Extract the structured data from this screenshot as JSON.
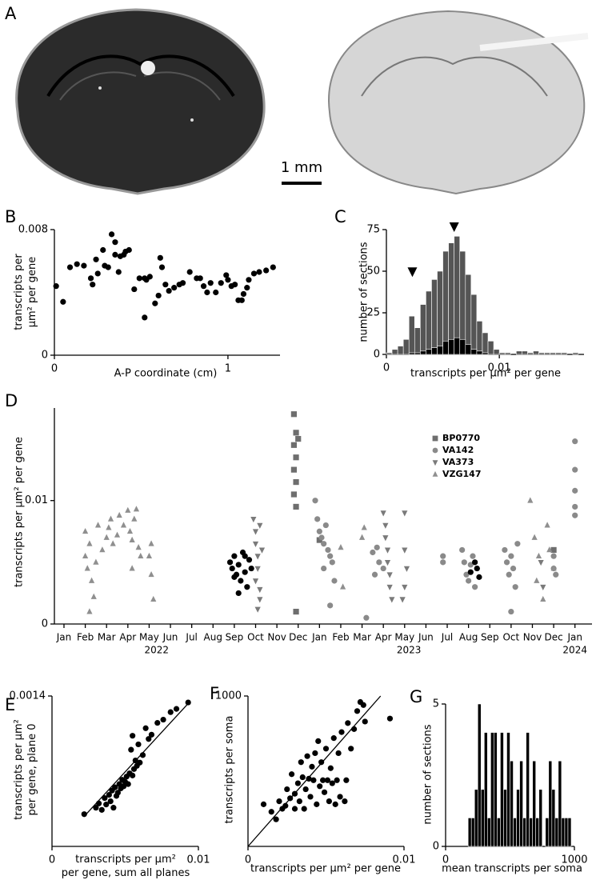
{
  "panel_a": {
    "label": "A",
    "scale_bar_label": "1 mm"
  },
  "chart_data": [
    {
      "type": "scatter",
      "label": "B",
      "ylabel": [
        "transcripts per",
        "μm² per gene"
      ],
      "xlabel": "A-P coordinate (cm)",
      "xlim": [
        0,
        1.3
      ],
      "ylim": [
        0,
        0.008
      ],
      "xticks": [
        0,
        1
      ],
      "yticks": [
        0,
        0.008
      ],
      "color": "#000000",
      "x": [
        0.01,
        0.05,
        0.09,
        0.13,
        0.17,
        0.21,
        0.22,
        0.24,
        0.25,
        0.28,
        0.29,
        0.31,
        0.33,
        0.35,
        0.35,
        0.37,
        0.38,
        0.4,
        0.41,
        0.43,
        0.46,
        0.49,
        0.52,
        0.52,
        0.53,
        0.55,
        0.58,
        0.6,
        0.61,
        0.62,
        0.64,
        0.66,
        0.69,
        0.72,
        0.74,
        0.78,
        0.82,
        0.84,
        0.86,
        0.88,
        0.9,
        0.93,
        0.96,
        0.99,
        1.0,
        1.02,
        1.04,
        1.06,
        1.08,
        1.09,
        1.11,
        1.12,
        1.15,
        1.18,
        1.22,
        1.26
      ],
      "values": [
        0.0044,
        0.0034,
        0.0056,
        0.0058,
        0.0057,
        0.0049,
        0.0045,
        0.0061,
        0.0052,
        0.0067,
        0.0057,
        0.0056,
        0.0077,
        0.0072,
        0.0064,
        0.0053,
        0.0063,
        0.0064,
        0.0066,
        0.0067,
        0.0042,
        0.0049,
        0.0049,
        0.0024,
        0.0048,
        0.005,
        0.0033,
        0.0038,
        0.0062,
        0.0056,
        0.0045,
        0.0041,
        0.0043,
        0.0045,
        0.0046,
        0.0053,
        0.0049,
        0.0049,
        0.0044,
        0.004,
        0.0046,
        0.004,
        0.0046,
        0.0051,
        0.0048,
        0.0044,
        0.0045,
        0.0035,
        0.0035,
        0.0039,
        0.0043,
        0.0048,
        0.0052,
        0.0053,
        0.0054,
        0.0056
      ]
    },
    {
      "type": "histogram",
      "label": "C",
      "ylabel": "number of sections",
      "xlabel": "transcripts per μm² per gene",
      "xlim": [
        0,
        0.0175
      ],
      "ylim": [
        0,
        75
      ],
      "xticks": [
        0,
        0.01
      ],
      "yticks": [
        0,
        25,
        50,
        75
      ],
      "bins": [
        0,
        0.0005,
        0.001,
        0.0015,
        0.002,
        0.0025,
        0.003,
        0.0035,
        0.004,
        0.0045,
        0.005,
        0.0055,
        0.006,
        0.0065,
        0.007,
        0.0075,
        0.008,
        0.0085,
        0.009,
        0.0095,
        0.01,
        0.0105,
        0.011,
        0.0115,
        0.012,
        0.0125,
        0.013,
        0.0135,
        0.014,
        0.0145,
        0.015,
        0.0155,
        0.016,
        0.0165,
        0.017,
        0.0175
      ],
      "series": [
        {
          "color": "#555555",
          "values": [
            1,
            3,
            5,
            9,
            23,
            16,
            30,
            38,
            45,
            50,
            62,
            67,
            71,
            62,
            48,
            36,
            20,
            13,
            8,
            3,
            1,
            1,
            0,
            2,
            2,
            1,
            2,
            1,
            1,
            1,
            1,
            1,
            0,
            1,
            0
          ]
        },
        {
          "color": "#000000",
          "values": [
            0,
            0,
            0,
            0,
            1,
            1,
            2,
            3,
            4,
            5,
            8,
            9,
            10,
            9,
            6,
            3,
            2,
            1,
            0,
            0,
            0,
            0,
            0,
            0,
            0,
            0,
            0,
            0,
            0,
            0,
            0,
            0,
            0,
            0,
            0
          ]
        }
      ],
      "markers": [
        {
          "x": 0.0023,
          "y": 50
        },
        {
          "x": 0.006,
          "y": 77
        }
      ]
    },
    {
      "type": "scatter",
      "label": "D",
      "ylabel": "transcripts per μm² per gene",
      "xlim": [
        -0.45,
        24.8
      ],
      "ylim": [
        0,
        0.0175
      ],
      "yticks": [
        0,
        0.01
      ],
      "legend": "upper right",
      "xticks": [
        {
          "value": 0,
          "label": "Jan"
        },
        {
          "value": 1,
          "label": "Feb"
        },
        {
          "value": 2,
          "label": "Mar"
        },
        {
          "value": 3,
          "label": "Apr"
        },
        {
          "value": 4,
          "label": "May"
        },
        {
          "value": 5,
          "label": "Jun"
        },
        {
          "value": 6,
          "label": "Jul"
        },
        {
          "value": 7,
          "label": "Aug"
        },
        {
          "value": 8,
          "label": "Sep"
        },
        {
          "value": 9,
          "label": "Oct"
        },
        {
          "value": 10,
          "label": "Nov"
        },
        {
          "value": 11,
          "label": "Dec"
        },
        {
          "value": 12,
          "label": "Jan"
        },
        {
          "value": 13,
          "label": "Feb"
        },
        {
          "value": 14,
          "label": "Mar"
        },
        {
          "value": 15,
          "label": "Apr"
        },
        {
          "value": 16,
          "label": "May"
        },
        {
          "value": 17,
          "label": "Jun"
        },
        {
          "value": 18,
          "label": "Jul"
        },
        {
          "value": 19,
          "label": "Aug"
        },
        {
          "value": 20,
          "label": "Sep"
        },
        {
          "value": 21,
          "label": "Oct"
        },
        {
          "value": 22,
          "label": "Nov"
        },
        {
          "value": 23,
          "label": "Dec"
        },
        {
          "value": 24,
          "label": "Jan"
        }
      ],
      "years": [
        "2022",
        "2023",
        "2024"
      ],
      "series": [
        {
          "name": "BP0770",
          "marker": "square",
          "color": "#6e6e6e",
          "x": [
            10.8,
            10.9,
            10.8,
            10.9,
            10.8,
            10.9,
            10.8,
            10.9,
            10.9,
            11.0,
            12.0,
            23.0
          ],
          "values": [
            0.017,
            0.0155,
            0.0145,
            0.0135,
            0.0125,
            0.0115,
            0.0105,
            0.0095,
            0.001,
            0.015,
            0.0068,
            0.006
          ]
        },
        {
          "name": "VA142",
          "marker": "circle",
          "color": "#8a8a8a",
          "x": [
            11.8,
            11.9,
            12.0,
            12.1,
            12.2,
            12.3,
            12.4,
            12.5,
            12.2,
            12.6,
            12.7,
            12.5,
            14.5,
            14.7,
            14.8,
            15.0,
            14.6,
            14.2,
            17.8,
            17.8,
            18.7,
            18.8,
            18.9,
            19.0,
            19.1,
            19.2,
            19.3,
            19.4,
            20.7,
            20.8,
            20.9,
            21.0,
            21.1,
            21.2,
            21.0,
            21.3,
            23.0,
            23.0,
            23.1,
            24.0,
            24.0,
            24.0,
            24.0,
            24.0
          ],
          "values": [
            0.01,
            0.0085,
            0.0075,
            0.007,
            0.0065,
            0.008,
            0.006,
            0.0055,
            0.0045,
            0.005,
            0.0035,
            0.0015,
            0.0058,
            0.0062,
            0.005,
            0.0045,
            0.004,
            0.0005,
            0.0055,
            0.005,
            0.006,
            0.005,
            0.004,
            0.0035,
            0.0048,
            0.0055,
            0.003,
            0.0045,
            0.006,
            0.005,
            0.004,
            0.0055,
            0.0045,
            0.003,
            0.001,
            0.0065,
            0.0055,
            0.0045,
            0.004,
            0.0148,
            0.0125,
            0.0108,
            0.0095,
            0.0088
          ]
        },
        {
          "name": "VA373",
          "marker": "triangle-down",
          "color": "#7a7a7a",
          "x": [
            8.9,
            9.0,
            9.0,
            9.1,
            9.1,
            9.0,
            9.2,
            9.2,
            9.1,
            9.3,
            9.2,
            15.0,
            15.1,
            15.1,
            15.2,
            15.2,
            15.3,
            15.3,
            15.4,
            16.0,
            16.0,
            16.1,
            16.0,
            15.9,
            22.4,
            22.5
          ],
          "values": [
            0.0085,
            0.0075,
            0.0065,
            0.0055,
            0.0045,
            0.0035,
            0.0028,
            0.002,
            0.0012,
            0.006,
            0.008,
            0.009,
            0.008,
            0.007,
            0.006,
            0.005,
            0.004,
            0.003,
            0.002,
            0.009,
            0.006,
            0.0045,
            0.003,
            0.002,
            0.005,
            0.003
          ]
        },
        {
          "name": "VZG147",
          "marker": "triangle-up",
          "color": "#8f8f8f",
          "x": [
            1.0,
            1.1,
            1.2,
            1.0,
            1.3,
            1.4,
            1.2,
            1.5,
            1.6,
            1.8,
            2.0,
            2.1,
            2.2,
            2.3,
            2.5,
            2.6,
            2.8,
            3.0,
            3.1,
            3.2,
            3.3,
            3.4,
            3.5,
            3.6,
            3.2,
            4.0,
            4.1,
            4.2,
            4.1,
            13.1,
            13.0,
            14.0,
            14.1,
            21.9,
            22.1,
            22.3,
            22.2,
            22.5,
            22.7,
            22.8,
            23.0
          ],
          "values": [
            0.0055,
            0.0045,
            0.0065,
            0.0075,
            0.0035,
            0.0022,
            0.001,
            0.005,
            0.008,
            0.006,
            0.007,
            0.0078,
            0.0085,
            0.0065,
            0.0072,
            0.0088,
            0.008,
            0.0092,
            0.0075,
            0.0068,
            0.0085,
            0.0093,
            0.0062,
            0.0055,
            0.0045,
            0.0055,
            0.004,
            0.002,
            0.0065,
            0.003,
            0.0062,
            0.007,
            0.0078,
            0.01,
            0.007,
            0.0055,
            0.0035,
            0.002,
            0.008,
            0.006,
            0.0045
          ]
        },
        {
          "marker": "circle",
          "color": "#000000",
          "x": [
            7.8,
            7.9,
            8.0,
            8.1,
            8.2,
            8.3,
            8.4,
            8.5,
            8.6,
            8.7,
            8.8,
            8.0,
            8.2,
            8.5,
            19.1,
            19.3,
            19.5,
            19.4
          ],
          "values": [
            0.005,
            0.0045,
            0.0055,
            0.004,
            0.0048,
            0.0035,
            0.0058,
            0.0042,
            0.003,
            0.0052,
            0.0045,
            0.0038,
            0.0025,
            0.0055,
            0.0042,
            0.005,
            0.0038,
            0.0045
          ]
        }
      ]
    },
    {
      "type": "scatter",
      "label": "E",
      "ylabel": [
        "transcripts per μm²",
        "per gene, plane 0"
      ],
      "xlabel": [
        "transcripts per μm²",
        "per gene, sum all planes"
      ],
      "xlim": [
        0,
        0.01
      ],
      "ylim": [
        0,
        0.0014
      ],
      "xticks": [
        0,
        0.01
      ],
      "yticks": [
        0.0014
      ],
      "color": "#000000",
      "x": [
        0.0022,
        0.003,
        0.0032,
        0.0034,
        0.0036,
        0.0037,
        0.0039,
        0.004,
        0.0041,
        0.0042,
        0.0043,
        0.0044,
        0.0045,
        0.0046,
        0.0047,
        0.0048,
        0.0049,
        0.005,
        0.0051,
        0.0052,
        0.0053,
        0.0054,
        0.0055,
        0.0056,
        0.0057,
        0.0058,
        0.0059,
        0.006,
        0.0062,
        0.0064,
        0.0066,
        0.0068,
        0.0072,
        0.0076,
        0.0081,
        0.0085,
        0.0093,
        0.0055
      ],
      "values": [
        0.0003,
        0.00036,
        0.0004,
        0.00034,
        0.00045,
        0.00039,
        0.00048,
        0.00042,
        0.00052,
        0.00036,
        0.00055,
        0.00047,
        0.0005,
        0.00058,
        0.00054,
        0.00062,
        0.00056,
        0.0006,
        0.00065,
        0.00058,
        0.00068,
        0.0009,
        0.00066,
        0.00072,
        0.0008,
        0.00075,
        0.00095,
        0.00078,
        0.00085,
        0.0011,
        0.001,
        0.00104,
        0.00115,
        0.00118,
        0.00125,
        0.00128,
        0.00134,
        0.00103
      ],
      "fit_line": {
        "x": [
          0.0022,
          0.0093
        ],
        "y": [
          0.00028,
          0.00133
        ]
      }
    },
    {
      "type": "scatter",
      "label": "F",
      "ylabel": "transcripts per soma",
      "xlabel": "transcripts per μm² per gene",
      "xlim": [
        0,
        0.01
      ],
      "ylim": [
        0,
        1000
      ],
      "xticks": [
        0,
        0.01
      ],
      "yticks": [
        1000
      ],
      "color": "#000000",
      "x": [
        0.001,
        0.0015,
        0.0018,
        0.002,
        0.0022,
        0.0024,
        0.0025,
        0.0027,
        0.0028,
        0.003,
        0.003,
        0.0032,
        0.0033,
        0.0034,
        0.0035,
        0.0036,
        0.0037,
        0.0038,
        0.0039,
        0.004,
        0.0041,
        0.0042,
        0.0043,
        0.0044,
        0.0045,
        0.0046,
        0.0047,
        0.0048,
        0.0049,
        0.005,
        0.0051,
        0.0052,
        0.0053,
        0.0054,
        0.0055,
        0.0056,
        0.0057,
        0.0058,
        0.0059,
        0.006,
        0.0062,
        0.0063,
        0.0064,
        0.0066,
        0.0068,
        0.007,
        0.0072,
        0.0074,
        0.0075,
        0.0091
      ],
      "values": [
        280,
        230,
        180,
        300,
        250,
        270,
        380,
        320,
        480,
        350,
        250,
        420,
        300,
        560,
        460,
        250,
        380,
        600,
        450,
        330,
        530,
        440,
        620,
        280,
        700,
        400,
        560,
        440,
        360,
        650,
        440,
        300,
        520,
        420,
        720,
        280,
        440,
        620,
        330,
        760,
        300,
        440,
        820,
        650,
        780,
        900,
        960,
        940,
        830,
        850
      ],
      "fit_line": {
        "x": [
          0,
          0.0085
        ],
        "y": [
          0,
          1000
        ]
      }
    },
    {
      "type": "histogram",
      "label": "G",
      "ylabel": "number of sections",
      "xlabel": "mean transcripts per soma",
      "xlim": [
        0,
        1000
      ],
      "ylim": [
        0,
        5
      ],
      "xticks": [
        0,
        1000
      ],
      "yticks": [
        0,
        5
      ],
      "color": "#000000",
      "bins": [
        175,
        200,
        225,
        250,
        275,
        300,
        325,
        350,
        375,
        400,
        425,
        450,
        475,
        500,
        525,
        550,
        575,
        600,
        625,
        650,
        675,
        700,
        725,
        750,
        775,
        800,
        825,
        850,
        875,
        900,
        925,
        950,
        975,
        1000
      ],
      "values": [
        1,
        1,
        2,
        5,
        2,
        4,
        1,
        4,
        4,
        1,
        4,
        2,
        4,
        3,
        1,
        2,
        3,
        1,
        4,
        1,
        3,
        1,
        2,
        0,
        1,
        3,
        2,
        1,
        3,
        1,
        1,
        1,
        0
      ]
    }
  ]
}
